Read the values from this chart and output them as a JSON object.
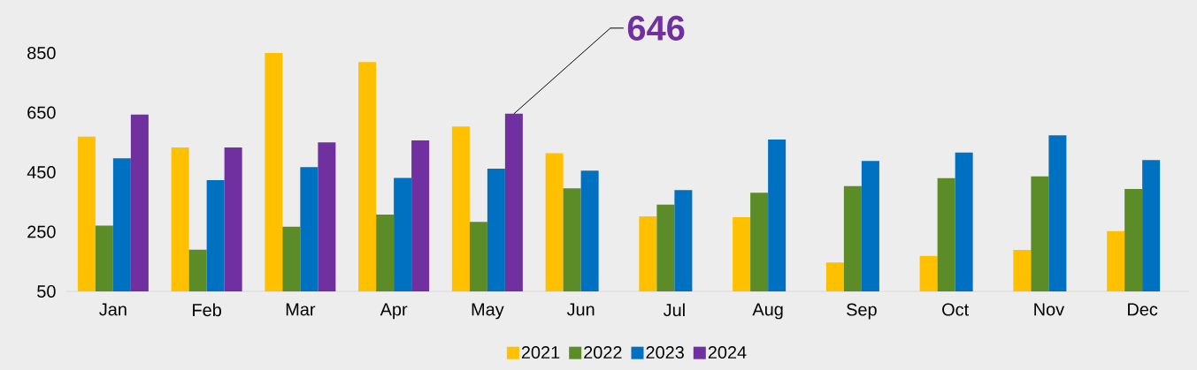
{
  "chart_data": {
    "type": "bar",
    "categories": [
      "Jan",
      "Feb",
      "Mar",
      "Apr",
      "May",
      "Jun",
      "Jul",
      "Aug",
      "Sep",
      "Oct",
      "Nov",
      "Dec"
    ],
    "series": [
      {
        "name": "2021",
        "color": "#ffc000",
        "values": [
          569,
          533,
          850,
          820,
          603,
          514,
          302,
          299,
          147,
          169,
          189,
          252
        ]
      },
      {
        "name": "2022",
        "color": "#5b8c27",
        "values": [
          271,
          190,
          267,
          308,
          283,
          396,
          341,
          381,
          403,
          430,
          436,
          394
        ]
      },
      {
        "name": "2023",
        "color": "#0070c0",
        "values": [
          497,
          423,
          467,
          431,
          462,
          455,
          390,
          560,
          488,
          516,
          574,
          491
        ]
      },
      {
        "name": "2024",
        "color": "#7030a0",
        "values": [
          643,
          533,
          550,
          557,
          646,
          null,
          null,
          null,
          null,
          null,
          null,
          null
        ],
        "value_labels": [
          null,
          null,
          null,
          null,
          "646",
          null,
          null,
          null,
          null,
          null,
          null,
          null
        ]
      }
    ],
    "ylim": [
      50,
      850
    ],
    "yticks": [
      50,
      250,
      450,
      650,
      850
    ],
    "legend": "bottom"
  }
}
